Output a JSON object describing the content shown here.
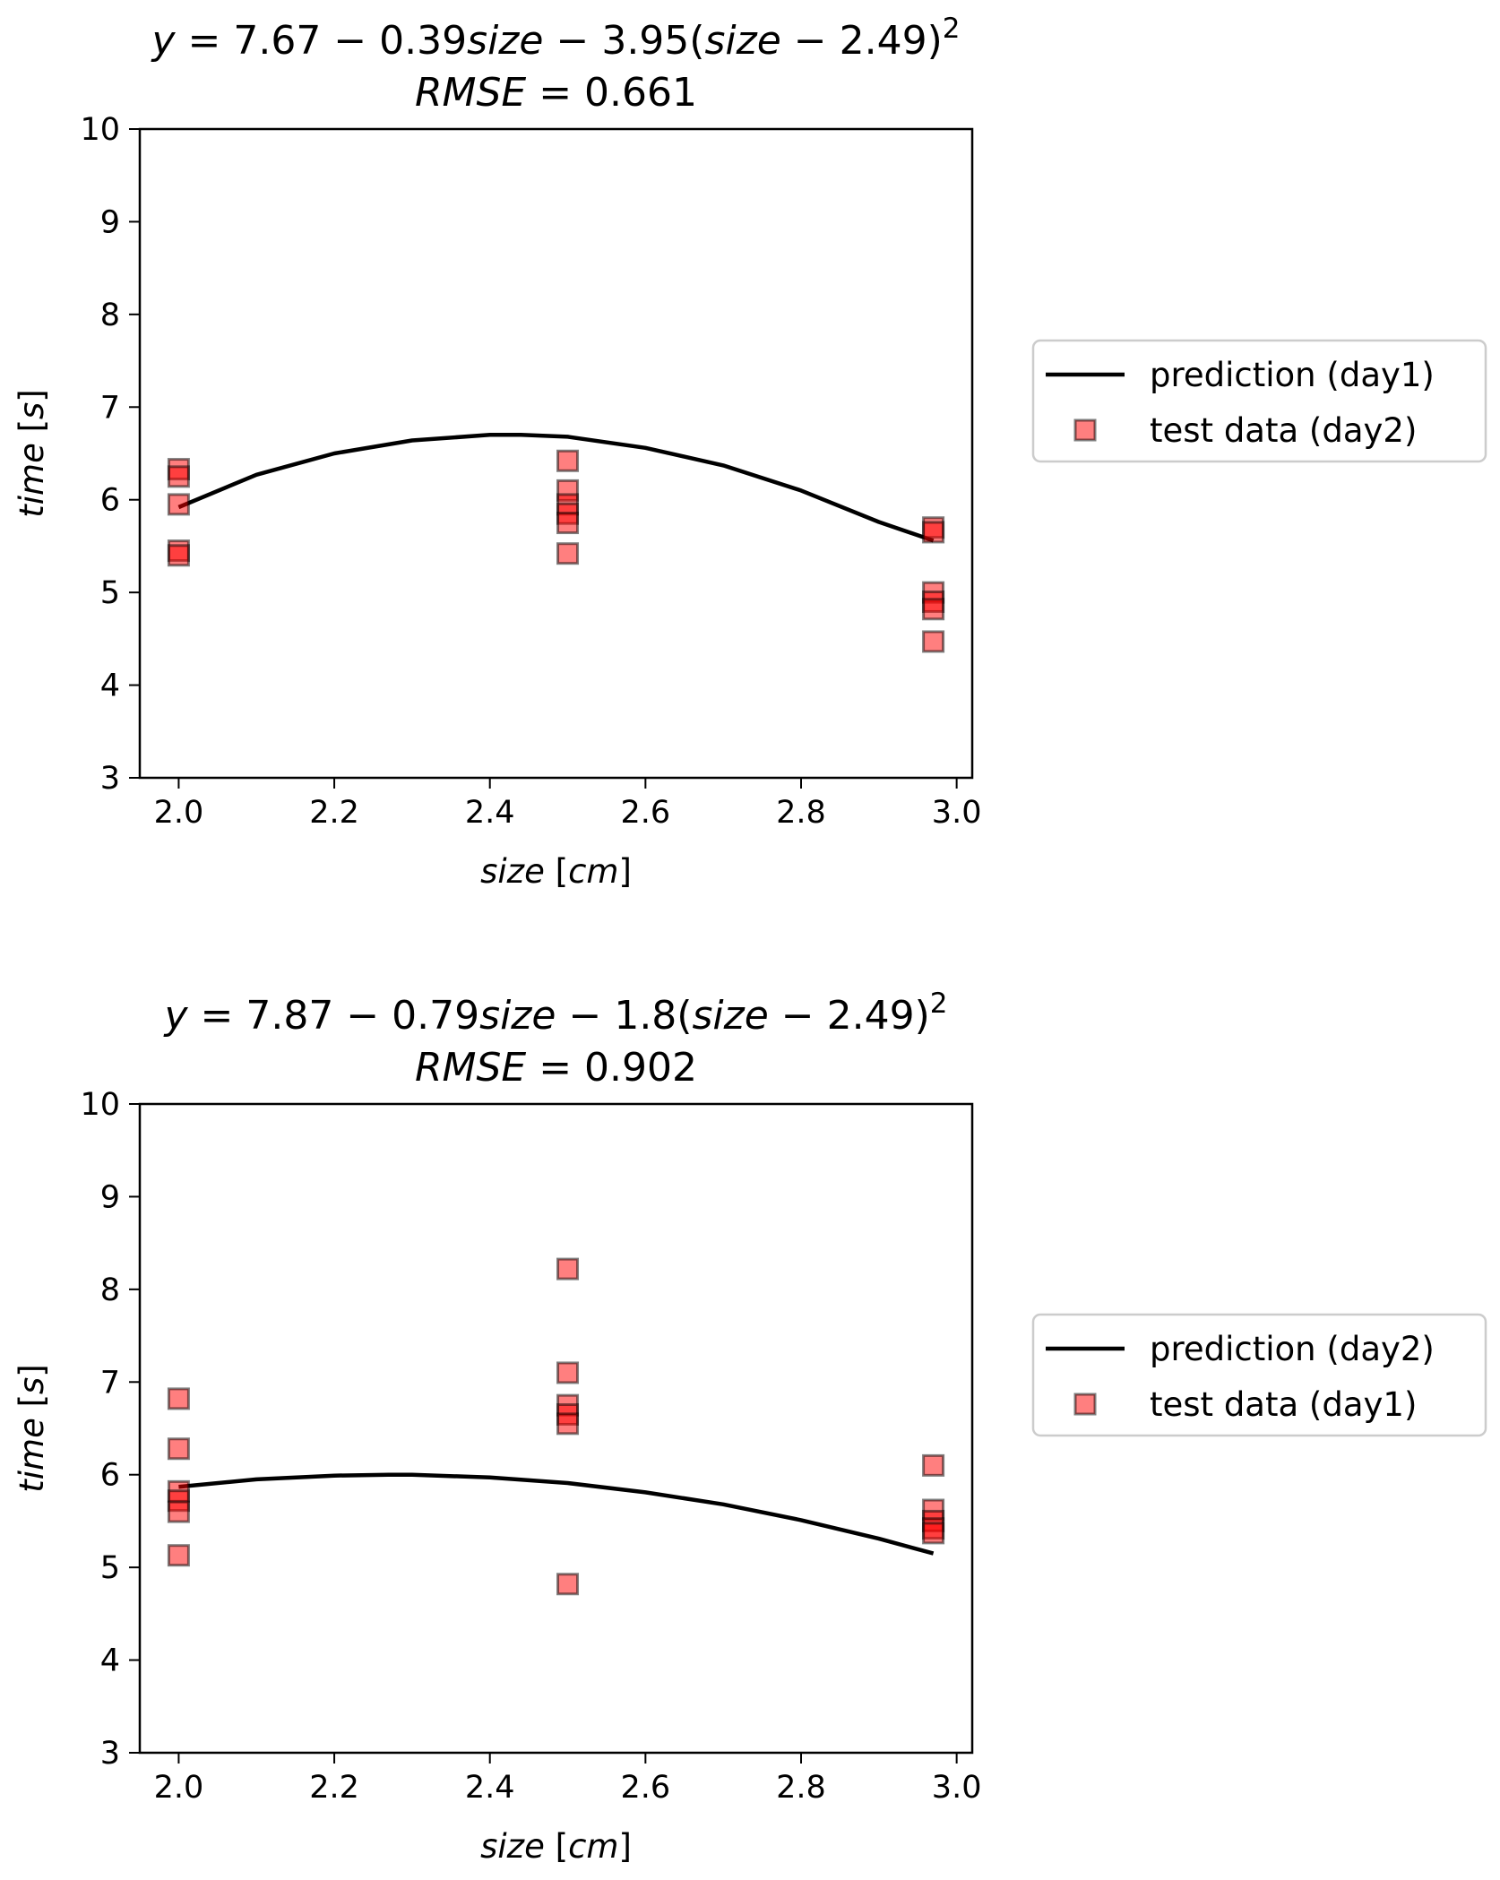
{
  "chart_data": [
    {
      "type": "scatter",
      "title_parts": [
        {
          "t": "y",
          "i": true
        },
        {
          "t": " = 7.67 − 0.39",
          "i": false
        },
        {
          "t": "size",
          "i": true
        },
        {
          "t": " − 3.95(",
          "i": false
        },
        {
          "t": "size",
          "i": true
        },
        {
          "t": " − 2.49)",
          "i": false
        }
      ],
      "title_sup": "2",
      "subtitle_parts": [
        {
          "t": "RMSE",
          "i": true
        },
        {
          "t": " = 0.661",
          "i": false
        }
      ],
      "xlabel_parts": [
        {
          "t": "size",
          "i": true
        },
        {
          "t": " [",
          "i": false
        },
        {
          "t": "cm",
          "i": true
        },
        {
          "t": "]",
          "i": false
        }
      ],
      "ylabel_parts": [
        {
          "t": "time",
          "i": true
        },
        {
          "t": " [",
          "i": false
        },
        {
          "t": "s",
          "i": true
        },
        {
          "t": "]",
          "i": false
        }
      ],
      "xlim": [
        1.95,
        3.02
      ],
      "ylim": [
        3,
        10
      ],
      "xticks": [
        "2.0",
        "2.2",
        "2.4",
        "2.6",
        "2.8",
        "3.0"
      ],
      "yticks": [
        "3",
        "4",
        "5",
        "6",
        "7",
        "8",
        "9",
        "10"
      ],
      "grid": false,
      "legend_position": "outside right",
      "series": [
        {
          "name": "prediction (day1)",
          "kind": "line",
          "color": "#000000",
          "x": [
            2.0,
            2.1,
            2.2,
            2.3,
            2.4,
            2.44,
            2.5,
            2.6,
            2.7,
            2.8,
            2.9,
            2.97
          ],
          "y": [
            5.92,
            6.27,
            6.5,
            6.64,
            6.7,
            6.7,
            6.68,
            6.56,
            6.37,
            6.1,
            5.76,
            5.56
          ]
        },
        {
          "name": "test data (day2)",
          "kind": "scatter",
          "marker": "square",
          "color": "#ff0000",
          "points": [
            {
              "x": 2.0,
              "y": 6.33
            },
            {
              "x": 2.0,
              "y": 6.25
            },
            {
              "x": 2.0,
              "y": 5.95
            },
            {
              "x": 2.0,
              "y": 5.45
            },
            {
              "x": 2.0,
              "y": 5.4
            },
            {
              "x": 2.5,
              "y": 6.42
            },
            {
              "x": 2.5,
              "y": 6.1
            },
            {
              "x": 2.5,
              "y": 5.95
            },
            {
              "x": 2.5,
              "y": 5.85
            },
            {
              "x": 2.5,
              "y": 5.75
            },
            {
              "x": 2.5,
              "y": 5.42
            },
            {
              "x": 2.97,
              "y": 5.7
            },
            {
              "x": 2.97,
              "y": 5.65
            },
            {
              "x": 2.97,
              "y": 5.0
            },
            {
              "x": 2.97,
              "y": 4.9
            },
            {
              "x": 2.97,
              "y": 4.82
            },
            {
              "x": 2.97,
              "y": 4.47
            }
          ]
        }
      ]
    },
    {
      "type": "scatter",
      "title_parts": [
        {
          "t": "y",
          "i": true
        },
        {
          "t": " = 7.87 − 0.79",
          "i": false
        },
        {
          "t": "size",
          "i": true
        },
        {
          "t": " − 1.8(",
          "i": false
        },
        {
          "t": "size",
          "i": true
        },
        {
          "t": " − 2.49)",
          "i": false
        }
      ],
      "title_sup": "2",
      "subtitle_parts": [
        {
          "t": "RMSE",
          "i": true
        },
        {
          "t": " = 0.902",
          "i": false
        }
      ],
      "xlabel_parts": [
        {
          "t": "size",
          "i": true
        },
        {
          "t": " [",
          "i": false
        },
        {
          "t": "cm",
          "i": true
        },
        {
          "t": "]",
          "i": false
        }
      ],
      "ylabel_parts": [
        {
          "t": "time",
          "i": true
        },
        {
          "t": " [",
          "i": false
        },
        {
          "t": "s",
          "i": true
        },
        {
          "t": "]",
          "i": false
        }
      ],
      "xlim": [
        1.95,
        3.02
      ],
      "ylim": [
        3,
        10
      ],
      "xticks": [
        "2.0",
        "2.2",
        "2.4",
        "2.6",
        "2.8",
        "3.0"
      ],
      "yticks": [
        "3",
        "4",
        "5",
        "6",
        "7",
        "8",
        "9",
        "10"
      ],
      "grid": false,
      "legend_position": "outside right",
      "series": [
        {
          "name": "prediction (day2)",
          "kind": "line",
          "color": "#000000",
          "x": [
            2.0,
            2.1,
            2.2,
            2.27,
            2.3,
            2.4,
            2.5,
            2.6,
            2.7,
            2.8,
            2.9,
            2.97
          ],
          "y": [
            5.87,
            5.95,
            5.99,
            6.0,
            6.0,
            5.97,
            5.91,
            5.81,
            5.68,
            5.51,
            5.31,
            5.15
          ]
        },
        {
          "name": "test data (day1)",
          "kind": "scatter",
          "marker": "square",
          "color": "#ff0000",
          "points": [
            {
              "x": 2.0,
              "y": 6.82
            },
            {
              "x": 2.0,
              "y": 6.28
            },
            {
              "x": 2.0,
              "y": 5.82
            },
            {
              "x": 2.0,
              "y": 5.72
            },
            {
              "x": 2.0,
              "y": 5.6
            },
            {
              "x": 2.0,
              "y": 5.13
            },
            {
              "x": 2.5,
              "y": 8.22
            },
            {
              "x": 2.5,
              "y": 7.1
            },
            {
              "x": 2.5,
              "y": 6.75
            },
            {
              "x": 2.5,
              "y": 6.65
            },
            {
              "x": 2.5,
              "y": 6.55
            },
            {
              "x": 2.5,
              "y": 4.82
            },
            {
              "x": 2.97,
              "y": 6.1
            },
            {
              "x": 2.97,
              "y": 5.62
            },
            {
              "x": 2.97,
              "y": 5.5
            },
            {
              "x": 2.97,
              "y": 5.42
            },
            {
              "x": 2.97,
              "y": 5.37
            }
          ]
        }
      ]
    }
  ]
}
